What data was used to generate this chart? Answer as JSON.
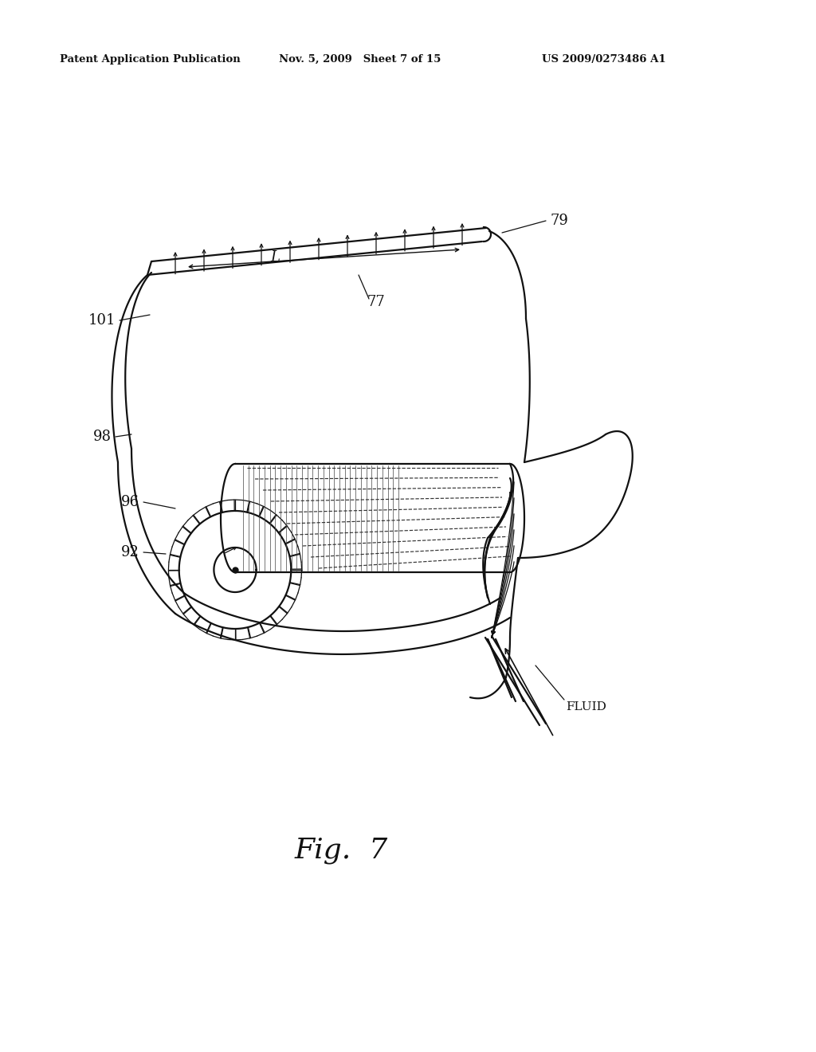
{
  "bg_color": "#ffffff",
  "line_color": "#111111",
  "header_left": "Patent Application Publication",
  "header_mid": "Nov. 5, 2009   Sheet 7 of 15",
  "header_right": "US 2009/0273486 A1",
  "fig_label": "Fig.  7",
  "header_fontsize": 9.5,
  "fig_fontsize": 26,
  "label_fontsize": 13
}
